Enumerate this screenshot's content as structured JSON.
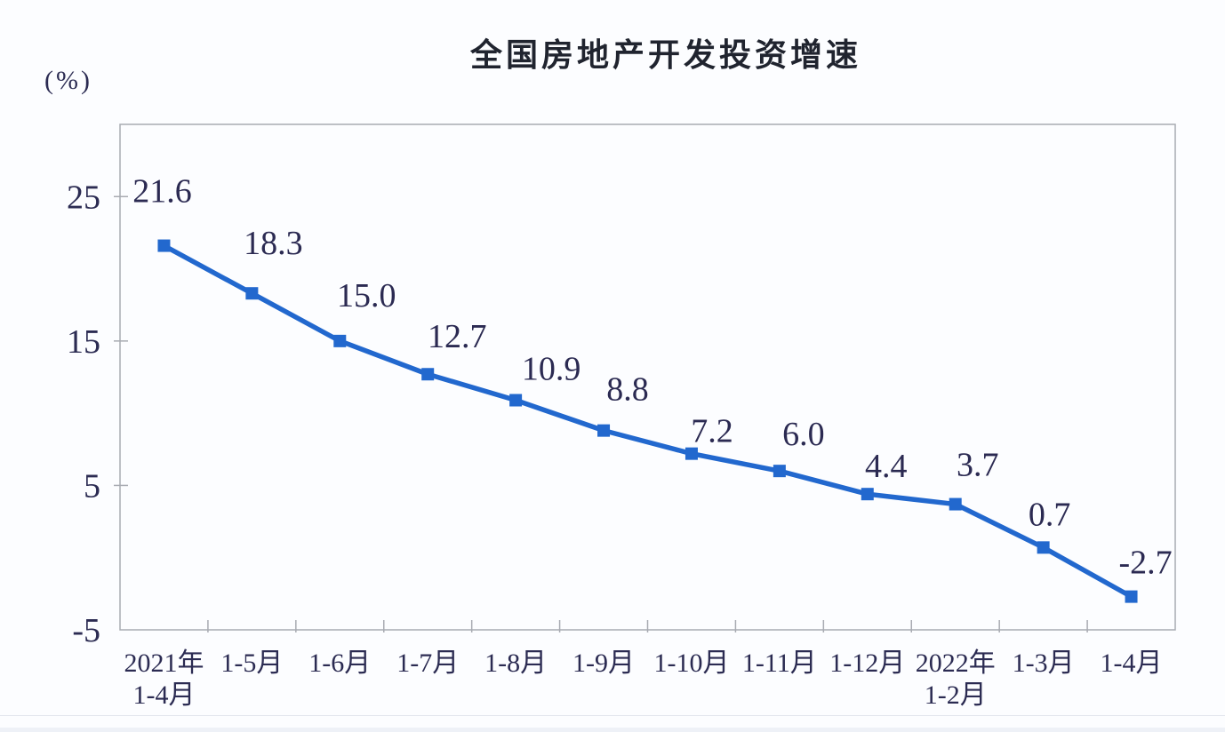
{
  "chart": {
    "title": "全国房地产开发投资增速",
    "unit_label": "(%)",
    "y_axis": {
      "ticks": [
        "25",
        "15",
        "5",
        "-5"
      ],
      "tick_values": [
        25,
        15,
        5,
        -5
      ]
    },
    "x_axis": {
      "labels": [
        [
          "2021年",
          "1-4月"
        ],
        [
          "1-5月"
        ],
        [
          "1-6月"
        ],
        [
          "1-7月"
        ],
        [
          "1-8月"
        ],
        [
          "1-9月"
        ],
        [
          "1-10月"
        ],
        [
          "1-11月"
        ],
        [
          "1-12月"
        ],
        [
          "2022年",
          "1-2月"
        ],
        [
          "1-3月"
        ],
        [
          "1-4月"
        ]
      ]
    },
    "colors": {
      "line": "#2268ce",
      "marker": "#2268ce",
      "axis_border": "#a8abb2",
      "text": "#2b2b52",
      "title_text": "#20242f"
    }
  },
  "chart_data": {
    "type": "line",
    "title": "全国房地产开发投资增速",
    "unit": "(%)",
    "categories": [
      "2021年1-4月",
      "1-5月",
      "1-6月",
      "1-7月",
      "1-8月",
      "1-9月",
      "1-10月",
      "1-11月",
      "1-12月",
      "2022年1-2月",
      "1-3月",
      "1-4月"
    ],
    "values": [
      21.6,
      18.3,
      15.0,
      12.7,
      10.9,
      8.8,
      7.2,
      6.0,
      4.4,
      3.7,
      0.7,
      -2.7
    ],
    "data_labels": [
      "21.6",
      "18.3",
      "15.0",
      "12.7",
      "10.9",
      "8.8",
      "7.2",
      "6.0",
      "4.4",
      "3.7",
      "0.7",
      "-2.7"
    ],
    "xlabel": "",
    "ylabel": "(%)",
    "ylim": [
      -5,
      30
    ],
    "y_tick_interval": 10,
    "grid": false,
    "legend": false,
    "marker": "square",
    "line_color": "#2268ce"
  }
}
